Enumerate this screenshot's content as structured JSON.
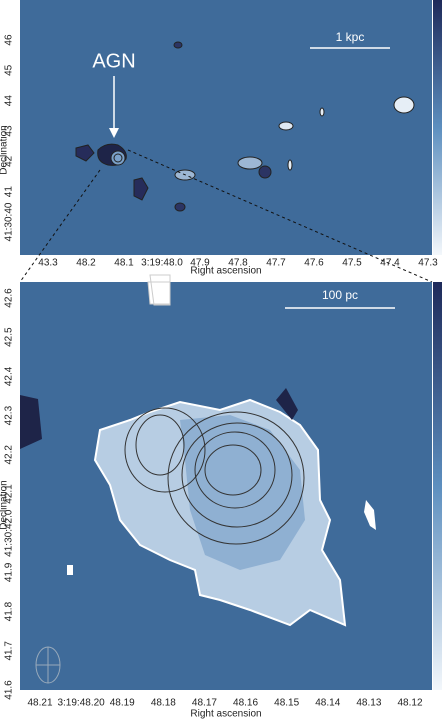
{
  "top_panel": {
    "annotation": "AGN",
    "scale_label": "1 kpc",
    "x_axis": {
      "label": "Right ascension",
      "ticks": [
        "43.3",
        "48.2",
        "48.1",
        "3:19:48.0",
        "47.9",
        "47.8",
        "47.7",
        "47.6",
        "47.5",
        "47.4",
        "47.3"
      ]
    },
    "y_axis": {
      "label": "Declination",
      "ticks": [
        "46",
        "45",
        "44",
        "43",
        "42",
        "41",
        "41:30:40"
      ]
    }
  },
  "bottom_panel": {
    "scale_label": "100 pc",
    "x_axis": {
      "label": "Right ascension",
      "ticks": [
        "48.21",
        "3:19:48.20",
        "48.19",
        "48.18",
        "48.17",
        "48.16",
        "48.15",
        "48.14",
        "48.13",
        "48.12"
      ]
    },
    "y_axis": {
      "label": "Declination",
      "ticks": [
        "42.6",
        "42.5",
        "42.4",
        "42.3",
        "42.2",
        "42.1",
        "41:30:42.0",
        "41.9",
        "41.8",
        "41.7",
        "41.6"
      ]
    }
  }
}
